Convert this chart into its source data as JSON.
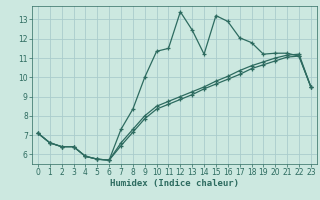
{
  "title": "",
  "xlabel": "Humidex (Indice chaleur)",
  "bg_color": "#cce8e0",
  "grid_color": "#aacccc",
  "line_color": "#2d6b60",
  "xlim": [
    -0.5,
    23.5
  ],
  "ylim": [
    5.5,
    13.7
  ],
  "yticks": [
    6,
    7,
    8,
    9,
    10,
    11,
    12,
    13
  ],
  "xticks": [
    0,
    1,
    2,
    3,
    4,
    5,
    6,
    7,
    8,
    9,
    10,
    11,
    12,
    13,
    14,
    15,
    16,
    17,
    18,
    19,
    20,
    21,
    22,
    23
  ],
  "line1_x": [
    0,
    1,
    2,
    3,
    4,
    5,
    6,
    7,
    8,
    9,
    10,
    11,
    12,
    13,
    14,
    15,
    16,
    17,
    18,
    19,
    20,
    21,
    22,
    23
  ],
  "line1_y": [
    7.1,
    6.6,
    6.4,
    6.4,
    5.9,
    5.75,
    5.7,
    7.3,
    8.35,
    10.0,
    11.35,
    11.5,
    13.4,
    12.45,
    11.2,
    13.2,
    12.9,
    12.05,
    11.8,
    11.2,
    11.25,
    11.25,
    11.1,
    9.5
  ],
  "line2_x": [
    0,
    1,
    2,
    3,
    4,
    5,
    6,
    7,
    8,
    9,
    10,
    11,
    12,
    13,
    14,
    15,
    16,
    17,
    18,
    19,
    20,
    21,
    22,
    23
  ],
  "line2_y": [
    7.1,
    6.6,
    6.4,
    6.4,
    5.9,
    5.75,
    5.7,
    6.45,
    7.15,
    7.85,
    8.35,
    8.6,
    8.85,
    9.1,
    9.4,
    9.65,
    9.9,
    10.15,
    10.45,
    10.65,
    10.85,
    11.05,
    11.1,
    9.5
  ],
  "line3_x": [
    0,
    1,
    2,
    3,
    4,
    5,
    6,
    7,
    8,
    9,
    10,
    11,
    12,
    13,
    14,
    15,
    16,
    17,
    18,
    19,
    20,
    21,
    22,
    23
  ],
  "line3_y": [
    7.1,
    6.6,
    6.4,
    6.4,
    5.9,
    5.75,
    5.7,
    6.6,
    7.3,
    8.0,
    8.5,
    8.75,
    9.0,
    9.25,
    9.5,
    9.8,
    10.05,
    10.35,
    10.6,
    10.8,
    11.0,
    11.15,
    11.2,
    9.5
  ]
}
